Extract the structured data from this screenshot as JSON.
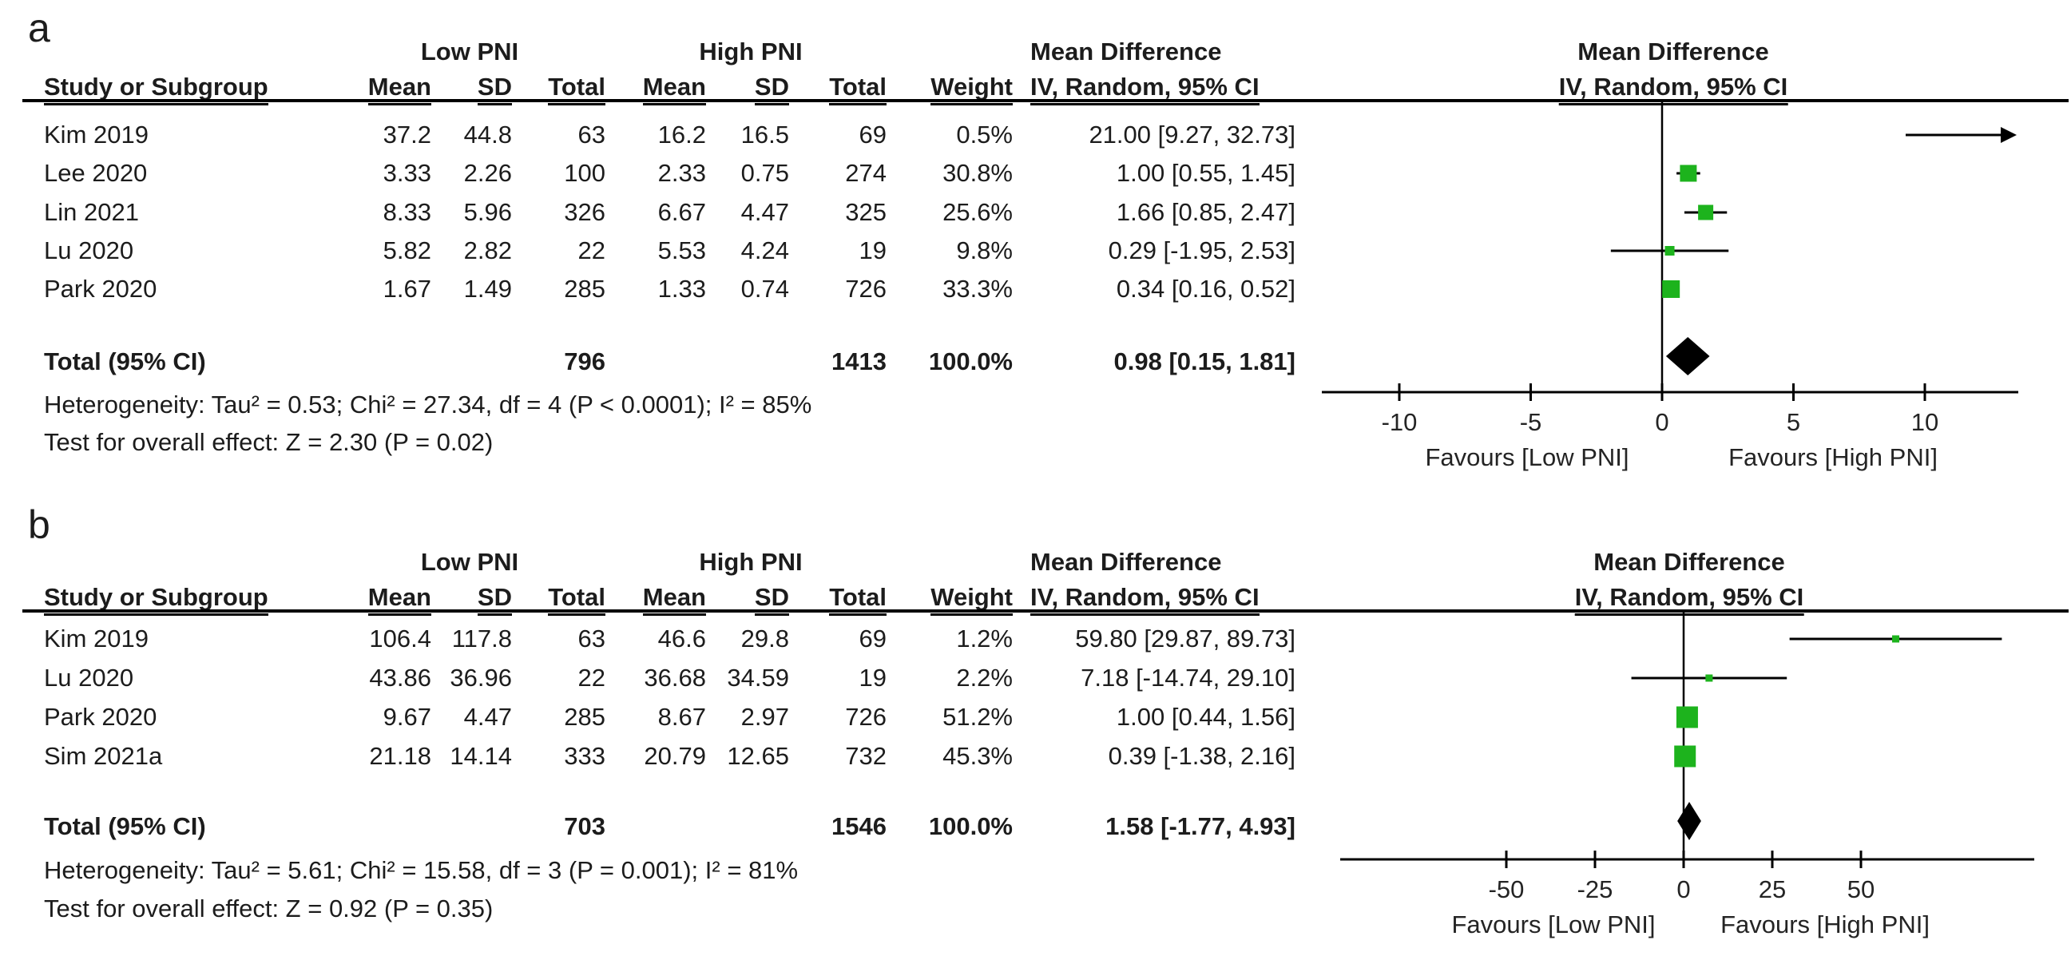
{
  "figure": {
    "panels": [
      {
        "panel_label": "a",
        "groups": {
          "experimental": "Low PNI",
          "control": "High PNI"
        },
        "effect_header": "Mean Difference",
        "columns": {
          "study": "Study or Subgroup",
          "mean": "Mean",
          "sd": "SD",
          "total": "Total",
          "weight": "Weight",
          "effect_ci": "IV, Random, 95% CI"
        },
        "studies": [
          {
            "name": "Kim 2019",
            "mean1": "37.2",
            "sd1": "44.8",
            "n1": "63",
            "mean2": "16.2",
            "sd2": "16.5",
            "n2": "69",
            "weight": "0.5%",
            "md_ci": "21.00 [9.27, 32.73]",
            "est": 21.0,
            "lo": 9.27,
            "hi": 32.73,
            "weight_pct": 0.5
          },
          {
            "name": "Lee 2020",
            "mean1": "3.33",
            "sd1": "2.26",
            "n1": "100",
            "mean2": "2.33",
            "sd2": "0.75",
            "n2": "274",
            "weight": "30.8%",
            "md_ci": "1.00 [0.55, 1.45]",
            "est": 1.0,
            "lo": 0.55,
            "hi": 1.45,
            "weight_pct": 30.8
          },
          {
            "name": "Lin 2021",
            "mean1": "8.33",
            "sd1": "5.96",
            "n1": "326",
            "mean2": "6.67",
            "sd2": "4.47",
            "n2": "325",
            "weight": "25.6%",
            "md_ci": "1.66 [0.85, 2.47]",
            "est": 1.66,
            "lo": 0.85,
            "hi": 2.47,
            "weight_pct": 25.6
          },
          {
            "name": "Lu 2020",
            "mean1": "5.82",
            "sd1": "2.82",
            "n1": "22",
            "mean2": "5.53",
            "sd2": "4.24",
            "n2": "19",
            "weight": "9.8%",
            "md_ci": "0.29 [-1.95, 2.53]",
            "est": 0.29,
            "lo": -1.95,
            "hi": 2.53,
            "weight_pct": 9.8
          },
          {
            "name": "Park 2020",
            "mean1": "1.67",
            "sd1": "1.49",
            "n1": "285",
            "mean2": "1.33",
            "sd2": "0.74",
            "n2": "726",
            "weight": "33.3%",
            "md_ci": "0.34 [0.16, 0.52]",
            "est": 0.34,
            "lo": 0.16,
            "hi": 0.52,
            "weight_pct": 33.3
          }
        ],
        "total_row": {
          "label": "Total (95% CI)",
          "n1": "796",
          "n2": "1413",
          "weight": "100.0%",
          "md_ci": "0.98 [0.15, 1.81]",
          "est": 0.98,
          "lo": 0.15,
          "hi": 1.81
        },
        "heterogeneity": "Heterogeneity: Tau² = 0.53; Chi² = 27.34, df = 4 (P < 0.0001); I² = 85%",
        "overall_effect": "Test for overall effect: Z = 2.30 (P = 0.02)",
        "axis": {
          "tick_values": [
            -10,
            -5,
            0,
            5,
            10
          ],
          "tick_labels": [
            "-10",
            "-5",
            "0",
            "5",
            "10"
          ],
          "favours_left": "Favours [Low PNI]",
          "favours_right": "Favours [High PNI]"
        }
      },
      {
        "panel_label": "b",
        "groups": {
          "experimental": "Low PNI",
          "control": "High PNI"
        },
        "effect_header": "Mean Difference",
        "columns": {
          "study": "Study or Subgroup",
          "mean": "Mean",
          "sd": "SD",
          "total": "Total",
          "weight": "Weight",
          "effect_ci": "IV, Random, 95% CI"
        },
        "studies": [
          {
            "name": "Kim 2019",
            "mean1": "106.4",
            "sd1": "117.8",
            "n1": "63",
            "mean2": "46.6",
            "sd2": "29.8",
            "n2": "69",
            "weight": "1.2%",
            "md_ci": "59.80 [29.87, 89.73]",
            "est": 59.8,
            "lo": 29.87,
            "hi": 89.73,
            "weight_pct": 1.2
          },
          {
            "name": "Lu 2020",
            "mean1": "43.86",
            "sd1": "36.96",
            "n1": "22",
            "mean2": "36.68",
            "sd2": "34.59",
            "n2": "19",
            "weight": "2.2%",
            "md_ci": "7.18 [-14.74, 29.10]",
            "est": 7.18,
            "lo": -14.74,
            "hi": 29.1,
            "weight_pct": 2.2
          },
          {
            "name": "Park 2020",
            "mean1": "9.67",
            "sd1": "4.47",
            "n1": "285",
            "mean2": "8.67",
            "sd2": "2.97",
            "n2": "726",
            "weight": "51.2%",
            "md_ci": "1.00 [0.44, 1.56]",
            "est": 1.0,
            "lo": 0.44,
            "hi": 1.56,
            "weight_pct": 51.2
          },
          {
            "name": "Sim 2021a",
            "mean1": "21.18",
            "sd1": "14.14",
            "n1": "333",
            "mean2": "20.79",
            "sd2": "12.65",
            "n2": "732",
            "weight": "45.3%",
            "md_ci": "0.39 [-1.38, 2.16]",
            "est": 0.39,
            "lo": -1.38,
            "hi": 2.16,
            "weight_pct": 45.3
          }
        ],
        "total_row": {
          "label": "Total (95% CI)",
          "n1": "703",
          "n2": "1546",
          "weight": "100.0%",
          "md_ci": "1.58 [-1.77, 4.93]",
          "est": 1.58,
          "lo": -1.77,
          "hi": 4.93
        },
        "heterogeneity": "Heterogeneity: Tau² = 5.61; Chi² = 15.58, df = 3 (P = 0.001); I² = 81%",
        "overall_effect": "Test for overall effect: Z = 0.92 (P = 0.35)",
        "axis": {
          "tick_values": [
            -50,
            -25,
            0,
            25,
            50
          ],
          "tick_labels": [
            "-50",
            "-25",
            "0",
            "25",
            "50"
          ],
          "favours_left": "Favours [Low PNI]",
          "favours_right": "Favours [High PNI]"
        }
      }
    ]
  },
  "colors": {
    "square_green": "#1db31d",
    "line_black": "#000000",
    "text": "#242424"
  },
  "chart_data": [
    {
      "type": "scatter",
      "subtype": "forest-plot",
      "panel": "a",
      "title": "Mean Difference",
      "subtitle": "IV, Random, 95% CI",
      "xlabel_left": "Favours [Low PNI]",
      "xlabel_right": "Favours [High PNI]",
      "xlim": [
        -12.5,
        13.5
      ],
      "x_ticks": [
        -10,
        -5,
        0,
        5,
        10
      ],
      "studies": [
        "Kim 2019",
        "Lee 2020",
        "Lin 2021",
        "Lu 2020",
        "Park 2020"
      ],
      "estimates": [
        21.0,
        1.0,
        1.66,
        0.29,
        0.34
      ],
      "ci_low": [
        9.27,
        0.55,
        0.85,
        -1.95,
        0.16
      ],
      "ci_high": [
        32.73,
        1.45,
        2.47,
        2.53,
        0.52
      ],
      "weights_pct": [
        0.5,
        30.8,
        25.6,
        9.8,
        33.3
      ],
      "pooled": {
        "estimate": 0.98,
        "ci_low": 0.15,
        "ci_high": 1.81
      },
      "heterogeneity": {
        "tau2": 0.53,
        "chi2": 27.34,
        "df": 4,
        "p": "< 0.0001",
        "i2_pct": 85
      },
      "overall_effect": {
        "z": 2.3,
        "p": 0.02
      }
    },
    {
      "type": "scatter",
      "subtype": "forest-plot",
      "panel": "b",
      "title": "Mean Difference",
      "subtitle": "IV, Random, 95% CI",
      "xlabel_left": "Favours [Low PNI]",
      "xlabel_right": "Favours [High PNI]",
      "xlim": [
        -97,
        99
      ],
      "x_ticks": [
        -50,
        -25,
        0,
        25,
        50
      ],
      "studies": [
        "Kim 2019",
        "Lu 2020",
        "Park 2020",
        "Sim 2021a"
      ],
      "estimates": [
        59.8,
        7.18,
        1.0,
        0.39
      ],
      "ci_low": [
        29.87,
        -14.74,
        0.44,
        -1.38
      ],
      "ci_high": [
        89.73,
        29.1,
        1.56,
        2.16
      ],
      "weights_pct": [
        1.2,
        2.2,
        51.2,
        45.3
      ],
      "pooled": {
        "estimate": 1.58,
        "ci_low": -1.77,
        "ci_high": 4.93
      },
      "heterogeneity": {
        "tau2": 5.61,
        "chi2": 15.58,
        "df": 3,
        "p": "= 0.001",
        "i2_pct": 81
      },
      "overall_effect": {
        "z": 0.92,
        "p": 0.35
      }
    }
  ]
}
